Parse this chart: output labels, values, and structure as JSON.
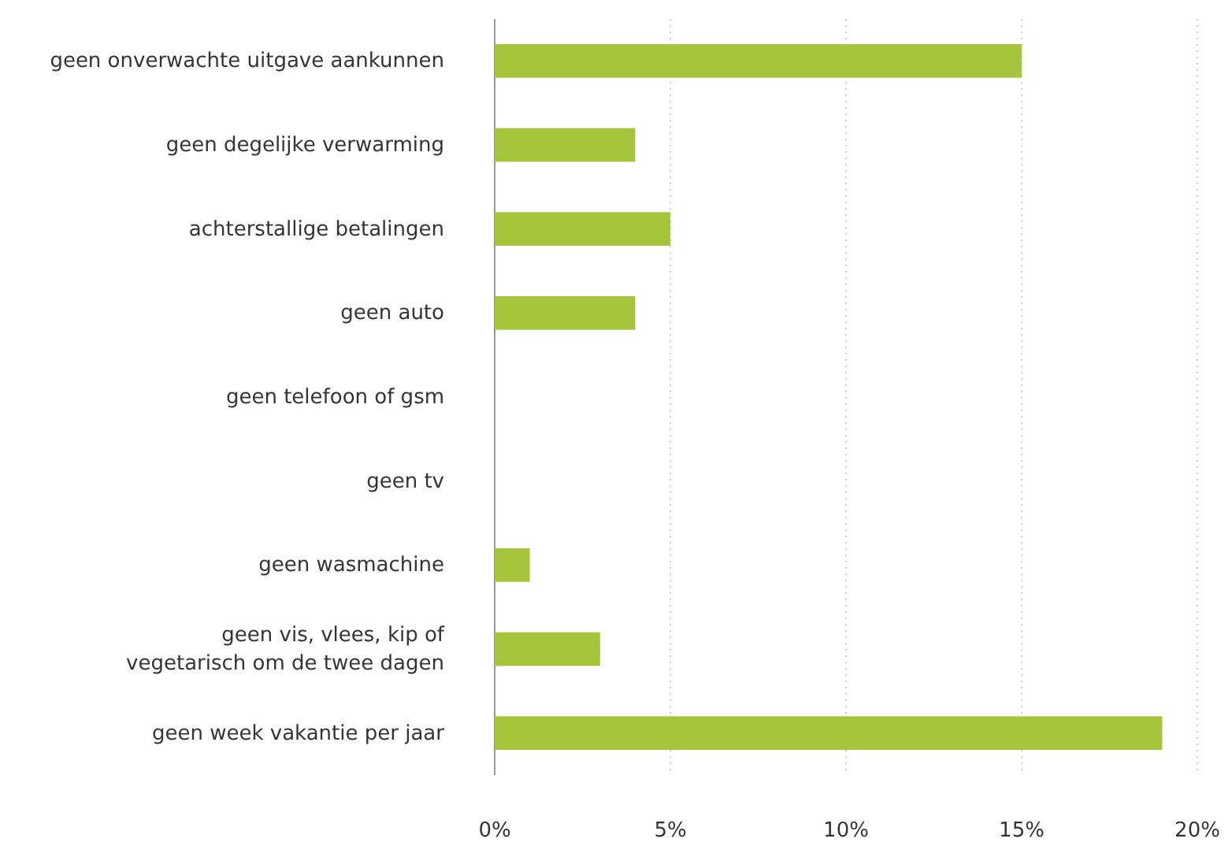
{
  "chart_data": {
    "type": "bar",
    "orientation": "horizontal",
    "categories": [
      "geen onverwachte uitgave aankunnen",
      "geen degelijke verwarming",
      "achterstallige betalingen",
      "geen auto",
      "geen telefoon of gsm",
      "geen tv",
      "geen wasmachine",
      "geen vis, vlees, kip of\nvegetarisch om de twee dagen",
      "geen week vakantie per jaar"
    ],
    "values": [
      15,
      4,
      5,
      4,
      0,
      0,
      1,
      3,
      19
    ],
    "color": "#a3c43b",
    "xlim": [
      0,
      20
    ],
    "xticks": [
      {
        "value": 0,
        "label": "0%"
      },
      {
        "value": 5,
        "label": "5%"
      },
      {
        "value": 10,
        "label": "10%"
      },
      {
        "value": 15,
        "label": "15%"
      },
      {
        "value": 20,
        "label": "20%"
      }
    ],
    "grid": "x"
  }
}
